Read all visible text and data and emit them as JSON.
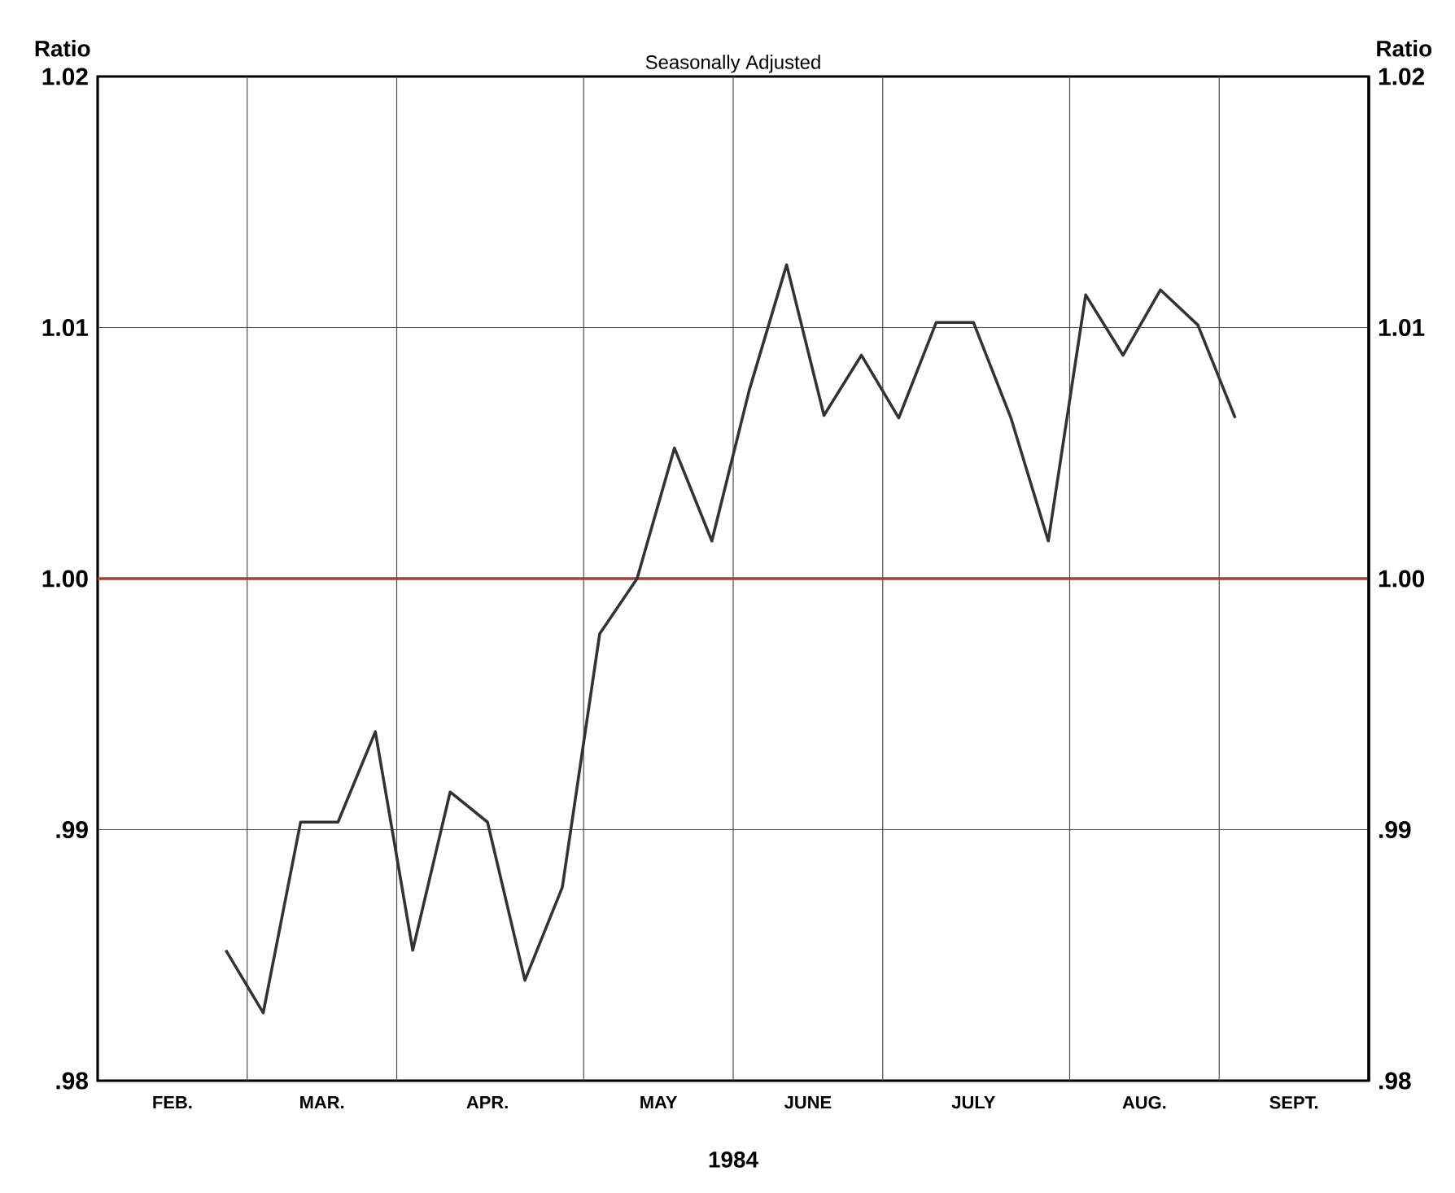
{
  "chart_data": {
    "type": "line",
    "title": "Seasonally Adjusted",
    "xlabel": "1984",
    "ylabel": "Ratio",
    "y2label": "Ratio",
    "xlim": [
      "1984-02-05",
      "1984-09-30"
    ],
    "xticks": [
      {
        "value": "1984-02-05",
        "label": null
      },
      {
        "value": "1984-02-19",
        "label": "FEB."
      },
      {
        "value": "1984-03-04",
        "label": null
      },
      {
        "value": "1984-03-18",
        "label": "MAR."
      },
      {
        "value": "1984-04-01",
        "label": null
      },
      {
        "value": "1984-04-18",
        "label": "APR."
      },
      {
        "value": "1984-05-06",
        "label": null
      },
      {
        "value": "1984-05-20",
        "label": "MAY"
      },
      {
        "value": "1984-06-03",
        "label": null
      },
      {
        "value": "1984-06-17",
        "label": "JUNE"
      },
      {
        "value": "1984-07-01",
        "label": null
      },
      {
        "value": "1984-07-18",
        "label": "JULY"
      },
      {
        "value": "1984-08-05",
        "label": null
      },
      {
        "value": "1984-08-19",
        "label": "AUG."
      },
      {
        "value": "1984-09-02",
        "label": null
      },
      {
        "value": "1984-09-16",
        "label": "SEPT."
      },
      {
        "value": "1984-09-30",
        "label": null
      }
    ],
    "ylim": [
      0.98,
      1.02
    ],
    "yticks": [
      {
        "value": 0.98,
        "label": ".98"
      },
      {
        "value": 0.99,
        "label": ".99"
      },
      {
        "value": 1.0,
        "label": "1.00"
      },
      {
        "value": 1.01,
        "label": "1.01"
      },
      {
        "value": 1.02,
        "label": "1.02"
      }
    ],
    "y2lim": [
      0.98,
      1.02
    ],
    "y2ticks": [
      {
        "value": 0.98,
        "label": ".98"
      },
      {
        "value": 0.99,
        "label": ".99"
      },
      {
        "value": 1.0,
        "label": "1.00"
      },
      {
        "value": 1.01,
        "label": "1.01"
      },
      {
        "value": 1.02,
        "label": "1.02"
      }
    ],
    "grid": true,
    "ref_lines": [
      {
        "axis": "y",
        "value": 1.0,
        "color": "#b03a30"
      }
    ],
    "series": [
      {
        "color": "#333333",
        "x": [
          "1984-02-29",
          "1984-03-07",
          "1984-03-14",
          "1984-03-21",
          "1984-03-28",
          "1984-04-04",
          "1984-04-11",
          "1984-04-18",
          "1984-04-25",
          "1984-05-02",
          "1984-05-09",
          "1984-05-16",
          "1984-05-23",
          "1984-05-30",
          "1984-06-06",
          "1984-06-13",
          "1984-06-20",
          "1984-06-27",
          "1984-07-04",
          "1984-07-11",
          "1984-07-18",
          "1984-07-25",
          "1984-08-01",
          "1984-08-08",
          "1984-08-15",
          "1984-08-22",
          "1984-08-29",
          "1984-09-05"
        ],
        "values": [
          0.9852,
          0.9827,
          0.9903,
          0.9903,
          0.9939,
          0.9852,
          0.9915,
          0.9903,
          0.984,
          0.9877,
          0.9978,
          1.0,
          1.0052,
          1.0015,
          1.0075,
          1.0125,
          1.0065,
          1.0089,
          1.0064,
          1.0102,
          1.0102,
          1.0064,
          1.0015,
          1.0113,
          1.0089,
          1.0115,
          1.0101,
          1.0064
        ]
      }
    ]
  }
}
